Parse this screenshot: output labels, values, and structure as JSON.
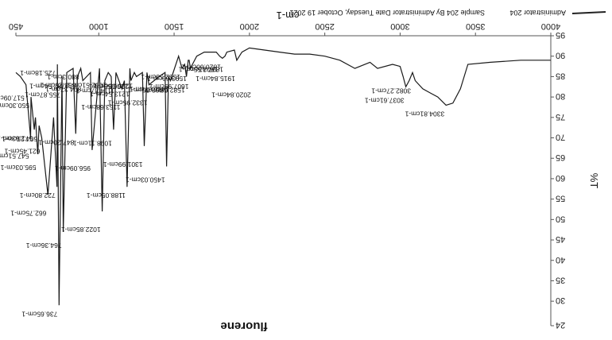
{
  "chart_data": {
    "type": "line",
    "orientation_note": "image is rotated 180 degrees",
    "title": "",
    "xlabel": "cm-1",
    "ylabel": "%T",
    "xlim": [
      4000,
      450
    ],
    "ylim": [
      24,
      95
    ],
    "x_ticks": [
      "4000",
      "3500",
      "3000",
      "2500",
      "2000",
      "1500",
      "1000",
      "450"
    ],
    "y_ticks": [
      "24",
      "30",
      "35",
      "40",
      "45",
      "50",
      "55",
      "60",
      "65",
      "70",
      "75",
      "80",
      "85",
      "90",
      "95"
    ],
    "compound_label": "fluorene",
    "legend": {
      "series": "Administrator 204",
      "description": "Sample 204 By Administrator Date Tuesday, October 19 2021"
    },
    "series": [
      {
        "name": "Administrator 204",
        "x": [
          4000,
          3800,
          3600,
          3450,
          3400,
          3350,
          3304.81,
          3250,
          3200,
          3150,
          3100,
          3082.27,
          3060,
          3037.61,
          3020,
          3000,
          2950,
          2850,
          2800,
          2700,
          2600,
          2500,
          2400,
          2300,
          2200,
          2100,
          2000,
          1950,
          1915.84,
          1900,
          1850,
          1837.42,
          1820.6,
          1802.55,
          1780,
          1700,
          1650,
          1607.99,
          1600,
          1593.66,
          1582.08,
          1570,
          1552.53,
          1530,
          1476.07,
          1462.66,
          1450.03,
          1440,
          1400,
          1332.95,
          1320,
          1301.99,
          1290,
          1250,
          1236.08,
          1213.54,
          1206.56,
          1188.05,
          1170,
          1153.68,
          1114.37,
          1098.11,
          1082.51,
          1062.95,
          1040,
          1022.85,
          1005,
          956.09,
          945,
          894.37,
          880.3,
          858.25,
          847.2,
          830,
          787.54,
          764.36,
          755.87,
          736.65,
          725.18,
          722.8,
          700,
          662.75,
          621.45,
          604.25,
          595.03,
          580,
          571.63,
          550.3,
          547.51,
          517.09,
          480,
          450
        ],
        "values": [
          89,
          89,
          88.5,
          88,
          82,
          78.5,
          78,
          80,
          81,
          82,
          84,
          86,
          84,
          82.5,
          85,
          87.5,
          88,
          87,
          88.5,
          87,
          89,
          90,
          90.5,
          90.5,
          91,
          91.5,
          92,
          91,
          89,
          91.5,
          91,
          90,
          89.5,
          90,
          91,
          91,
          90,
          87,
          89,
          89,
          85,
          88,
          87,
          90,
          84,
          85,
          63,
          86,
          85,
          83,
          86,
          68,
          86,
          85,
          86,
          84,
          87,
          58,
          84,
          82,
          86,
          72,
          85,
          86,
          84,
          52,
          87,
          67,
          86,
          84,
          87,
          85,
          71,
          87,
          86,
          47,
          85,
          29,
          88,
          58,
          75,
          56,
          70,
          73,
          66,
          75,
          72,
          80,
          70,
          83,
          85,
          86
        ]
      }
    ],
    "annotations": [
      {
        "label": "736.65cm-1",
        "x": 736.65
      },
      {
        "label": "764.36cm-1",
        "x": 764.36
      },
      {
        "label": "1022.85cm-1",
        "x": 1022.85
      },
      {
        "label": "1188.05cm-1",
        "x": 1188.05
      },
      {
        "label": "1450.03cm-1",
        "x": 1450.03
      },
      {
        "label": "1301.99cm-1",
        "x": 1301.99
      },
      {
        "label": "722.80cm-1",
        "x": 722.8
      },
      {
        "label": "621.45cm-1",
        "x": 621.45
      },
      {
        "label": "662.75cm-1",
        "x": 662.75
      },
      {
        "label": "725.18cm-1",
        "x": 725.18
      },
      {
        "label": "595.03cm-1",
        "x": 595.03
      },
      {
        "label": "956.09cm-1",
        "x": 956.09
      },
      {
        "label": "847.20cm-1",
        "x": 847.2
      },
      {
        "label": "1098.11cm-1",
        "x": 1098.11
      },
      {
        "label": "547.51cm-1",
        "x": 547.51
      },
      {
        "label": "571.63cm-1",
        "x": 571.63
      },
      {
        "label": "604.25cm-1",
        "x": 604.25
      },
      {
        "label": "755.87cm-1",
        "x": 755.87
      },
      {
        "label": "550.30cm-1",
        "x": 550.3
      },
      {
        "label": "517.09cm-1",
        "x": 517.09
      },
      {
        "label": "1153.68cm-1",
        "x": 1153.68
      },
      {
        "label": "1476.07cm-1",
        "x": 1476.07
      },
      {
        "label": "1213.54cm-1",
        "x": 1213.54
      },
      {
        "label": "1607.99cm-1",
        "x": 1607.99
      },
      {
        "label": "880.3cm-1",
        "x": 880.3
      },
      {
        "label": "1582.08cm-1",
        "x": 1582.08
      },
      {
        "label": "1915.84cm-1",
        "x": 1915.84
      },
      {
        "label": "1820.60cm-1",
        "x": 1820.6
      },
      {
        "label": "1462.66cm-1",
        "x": 1462.66
      },
      {
        "label": "1332.95cm-1",
        "x": 1332.95
      },
      {
        "label": "1062.51cm-1",
        "x": 1062.51
      },
      {
        "label": "1236.08cm-1",
        "x": 1236.08
      },
      {
        "label": "1114.37cm-1",
        "x": 1114.37
      },
      {
        "label": "858.25cm-1",
        "x": 858.25
      },
      {
        "label": "787.54cm-1",
        "x": 787.54
      },
      {
        "label": "1206.56cm-1",
        "x": 1206.56
      },
      {
        "label": "894.37cm-1",
        "x": 894.37
      },
      {
        "label": "1802.55cm-1",
        "x": 1802.55
      },
      {
        "label": "1593.66cm-1",
        "x": 1593.66
      },
      {
        "label": "1552.53cm-1",
        "x": 1552.53
      },
      {
        "label": "1837.42cm-1",
        "x": 1837.42
      },
      {
        "label": "2020.84cm-1",
        "x": 2020.84
      },
      {
        "label": "3304.81cm-1",
        "x": 3304.81
      },
      {
        "label": "3037.61cm-1",
        "x": 3037.61
      },
      {
        "label": "3082.27cm-1",
        "x": 3082.27
      }
    ],
    "grid": false,
    "legend_position": "bottom-left (rotated)"
  }
}
